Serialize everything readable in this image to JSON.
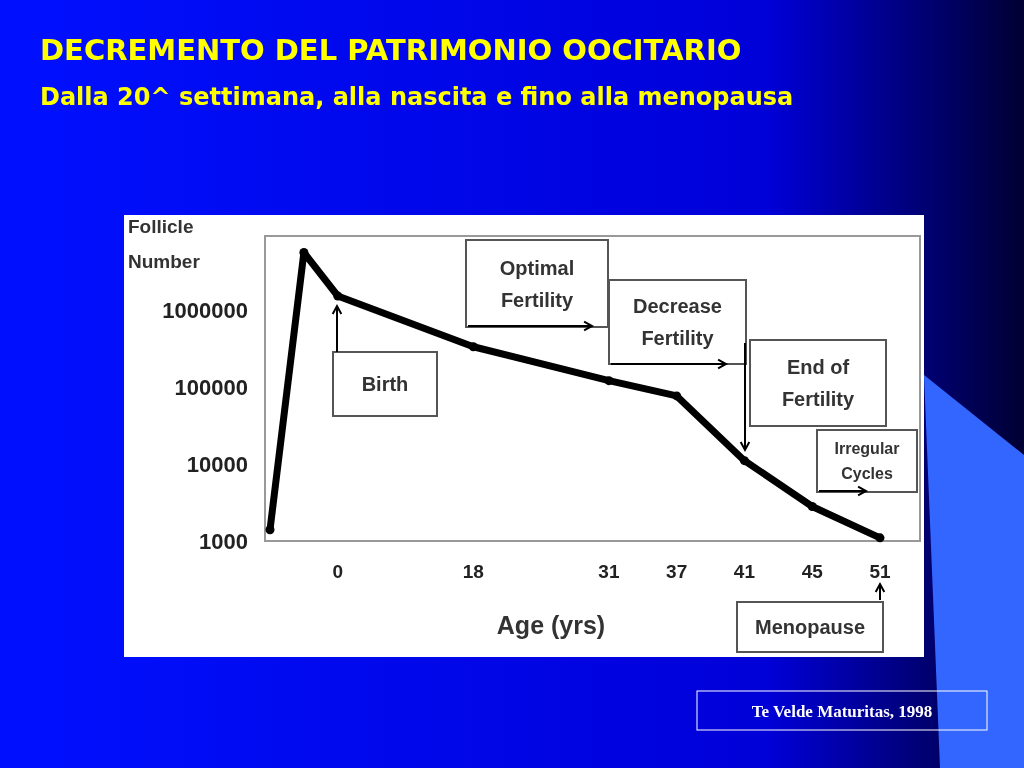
{
  "chart_data": {
    "type": "line",
    "title": "DECREMENTO DEL PATRIMONIO OOCITARIO",
    "subtitle": "Dalla 20^ settimana, alla nascita e fino alla menopausa",
    "xlabel": "Age (yrs)",
    "ylabel": "Follicle Number",
    "categories": [
      null,
      null,
      "0",
      null,
      null,
      null,
      "18",
      null,
      null,
      null,
      "31",
      null,
      "37",
      null,
      "41",
      null,
      "45",
      null,
      "51"
    ],
    "series": [
      {
        "color": "#000000",
        "values": [
          1400,
          5500000,
          1500000,
          null,
          null,
          null,
          330000,
          null,
          null,
          null,
          120000,
          null,
          76000,
          null,
          11000,
          null,
          2800,
          null,
          1100
        ]
      }
    ],
    "log": true,
    "ylim": [
      1000,
      9000000
    ],
    "yticks": [
      1000,
      10000,
      100000,
      1000000
    ],
    "marker": "circle",
    "line_style": "solid",
    "grid": false,
    "annotations": [
      "Birth",
      "Optimal Fertility",
      "Decrease Fertility",
      "End of Fertility",
      "Irregular Cycles",
      "Menopause",
      "Te Velde Maturitas, 1998"
    ]
  }
}
